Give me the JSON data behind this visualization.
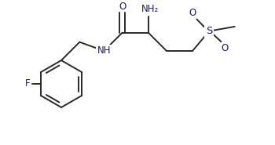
{
  "bg_color": "#ffffff",
  "line_color": "#2a2a2a",
  "text_color": "#1a1a6e",
  "figsize": [
    3.5,
    1.85
  ],
  "dpi": 100,
  "atoms": {
    "NH2_label": "NH₂",
    "O_top_label": "O",
    "O_left_label": "O",
    "O_right_label": "O",
    "S_label": "S",
    "NH_label": "NH",
    "F_label": "F"
  },
  "bond_lw": 1.4,
  "font_size": 8.5
}
